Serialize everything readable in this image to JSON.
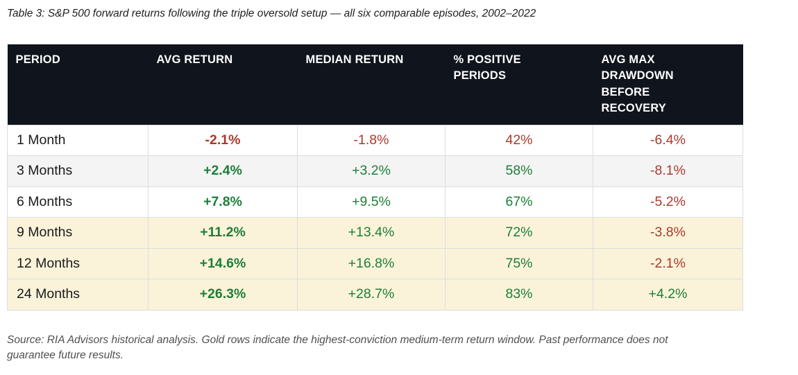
{
  "title": "Table 3: S&P 500 forward returns following the triple oversold setup — all six comparable episodes, 2002–2022",
  "source_note": "Source: RIA Advisors historical analysis. Gold rows indicate the highest-conviction medium-term return window. Past performance does not\nguarantee future results.",
  "colors": {
    "header_bg": "#10141c",
    "header_text": "#ffffff",
    "positive_text": "#1e7e38",
    "negative_text": "#a93a2e",
    "gold_row_bg": "#faf3da",
    "gray_row_bg": "#f4f4f4",
    "white_row_bg": "#ffffff",
    "border": "#dcdcdc"
  },
  "chart_data": {
    "type": "table",
    "title": "Table 3: S&P 500 forward returns following the triple oversold setup — all six comparable episodes, 2002–2022",
    "columns": [
      "PERIOD",
      "AVG RETURN",
      "MEDIAN RETURN",
      "% POSITIVE\nPERIODS",
      "AVG MAX\nDRAWDOWN\nBEFORE\nRECOVERY"
    ],
    "rows": [
      {
        "period": "1 Month",
        "avg_return": "-2.1%",
        "avg_sentiment": "neg",
        "median_return": "-1.8%",
        "median_sentiment": "neg",
        "pct_positive": "42%",
        "pct_sentiment": "neg",
        "drawdown": "-6.4%",
        "drawdown_sentiment": "neg",
        "row_bg": "white"
      },
      {
        "period": "3 Months",
        "avg_return": "+2.4%",
        "avg_sentiment": "pos",
        "median_return": "+3.2%",
        "median_sentiment": "pos",
        "pct_positive": "58%",
        "pct_sentiment": "pos",
        "drawdown": "-8.1%",
        "drawdown_sentiment": "neg",
        "row_bg": "gray"
      },
      {
        "period": "6 Months",
        "avg_return": "+7.8%",
        "avg_sentiment": "pos",
        "median_return": "+9.5%",
        "median_sentiment": "pos",
        "pct_positive": "67%",
        "pct_sentiment": "pos",
        "drawdown": "-5.2%",
        "drawdown_sentiment": "neg",
        "row_bg": "white"
      },
      {
        "period": "9 Months",
        "avg_return": "+11.2%",
        "avg_sentiment": "pos",
        "median_return": "+13.4%",
        "median_sentiment": "pos",
        "pct_positive": "72%",
        "pct_sentiment": "pos",
        "drawdown": "-3.8%",
        "drawdown_sentiment": "neg",
        "row_bg": "gold"
      },
      {
        "period": "12 Months",
        "avg_return": "+14.6%",
        "avg_sentiment": "pos",
        "median_return": "+16.8%",
        "median_sentiment": "pos",
        "pct_positive": "75%",
        "pct_sentiment": "pos",
        "drawdown": "-2.1%",
        "drawdown_sentiment": "neg",
        "row_bg": "gold"
      },
      {
        "period": "24 Months",
        "avg_return": "+26.3%",
        "avg_sentiment": "pos",
        "median_return": "+28.7%",
        "median_sentiment": "pos",
        "pct_positive": "83%",
        "pct_sentiment": "pos",
        "drawdown": "+4.2%",
        "drawdown_sentiment": "pos",
        "row_bg": "gold"
      }
    ]
  }
}
